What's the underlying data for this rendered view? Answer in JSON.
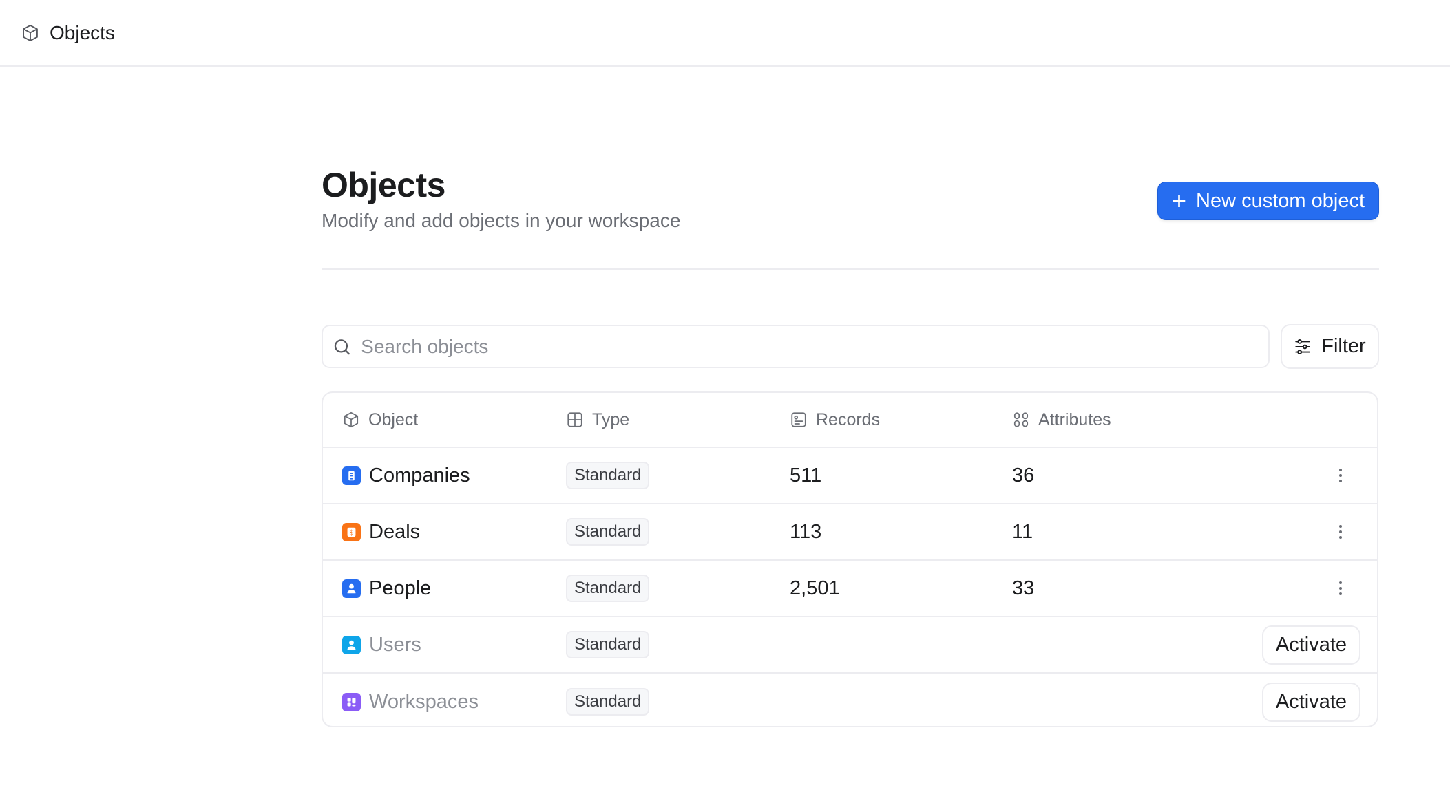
{
  "topbar": {
    "title": "Objects",
    "icon": "cube-icon"
  },
  "header": {
    "title": "Objects",
    "subtitle": "Modify and add objects in your workspace",
    "new_button": "New custom object"
  },
  "search": {
    "placeholder": "Search objects",
    "value": ""
  },
  "filter_label": "Filter",
  "table": {
    "columns": [
      "Object",
      "Type",
      "Records",
      "Attributes"
    ],
    "rows": [
      {
        "name": "Companies",
        "type": "Standard",
        "records": "511",
        "attributes": "36",
        "active": true,
        "color": "#266df0",
        "icon": "building-icon"
      },
      {
        "name": "Deals",
        "type": "Standard",
        "records": "113",
        "attributes": "11",
        "active": true,
        "color": "#f97316",
        "icon": "dollar-icon"
      },
      {
        "name": "People",
        "type": "Standard",
        "records": "2,501",
        "attributes": "33",
        "active": true,
        "color": "#266df0",
        "icon": "person-icon"
      },
      {
        "name": "Users",
        "type": "Standard",
        "records": "",
        "attributes": "",
        "active": false,
        "action": "Activate",
        "color": "#0ea5e9",
        "icon": "user-icon"
      },
      {
        "name": "Workspaces",
        "type": "Standard",
        "records": "",
        "attributes": "",
        "active": false,
        "action": "Activate",
        "color": "#8b5cf6",
        "icon": "workspace-icon"
      }
    ]
  }
}
